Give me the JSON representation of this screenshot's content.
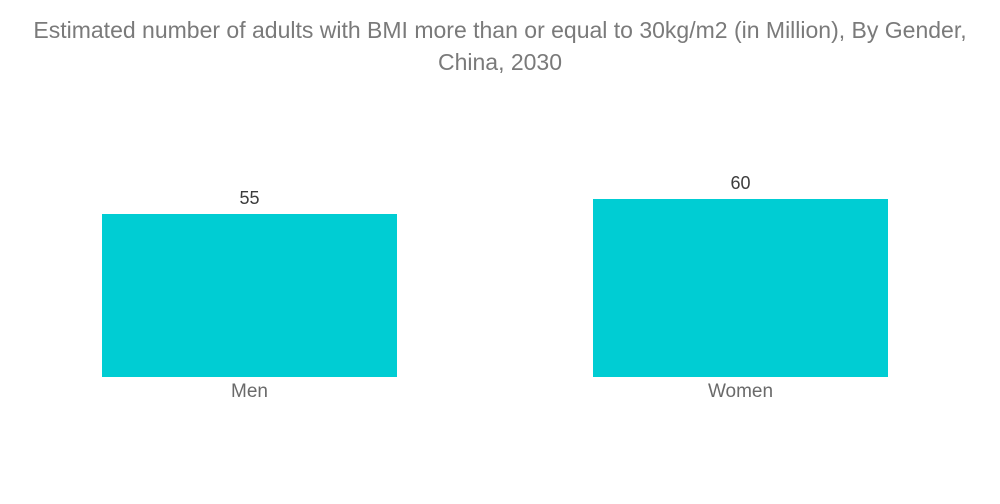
{
  "header": {
    "title_line1": "Estimated number of adults with BMI more than or equal to 30kg/m2 (in Million), By Gender,",
    "title_line2": "China, 2030"
  },
  "colors": {
    "background": "#FFFFFF",
    "bar": "#00CDD3",
    "title_text": "#7A7A7A",
    "value_label": "#3D3D3D",
    "category_label": "#6A6A6A"
  },
  "chart_data": {
    "type": "bar",
    "title": "Estimated number of adults with BMI more than or equal to 30kg/m2 (in Million), By Gender, China, 2030",
    "categories": [
      "Men",
      "Women"
    ],
    "values": [
      55,
      60
    ],
    "xlabel": "",
    "ylabel": "",
    "ylim": [
      0,
      73
    ],
    "grid": false,
    "legend": false,
    "data_labels": true,
    "bar_color": "#00CDD3",
    "orientation": "vertical"
  }
}
